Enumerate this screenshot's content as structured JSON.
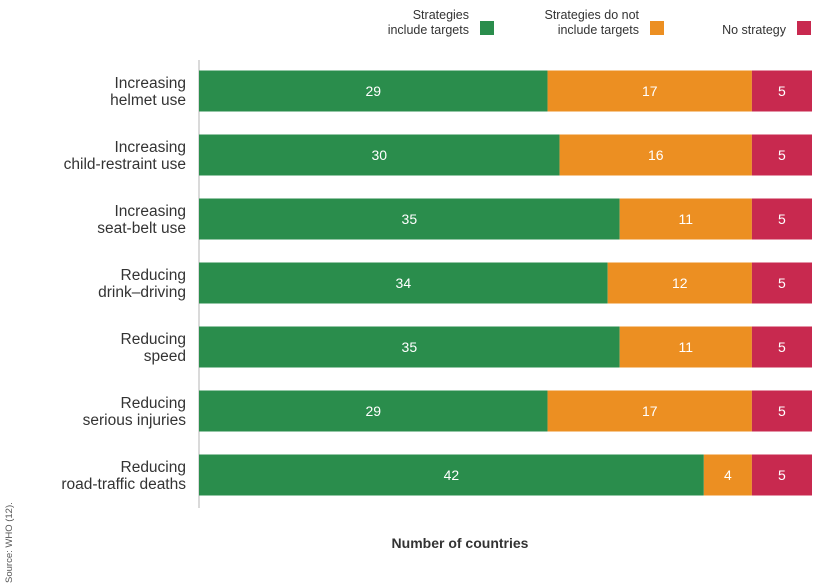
{
  "chart_data": {
    "type": "bar",
    "orientation": "horizontal",
    "stacked": true,
    "categories": [
      [
        "Increasing",
        "helmet use"
      ],
      [
        "Increasing",
        "child-restraint use"
      ],
      [
        "Increasing",
        "seat-belt use"
      ],
      [
        "Reducing",
        "drink–driving"
      ],
      [
        "Reducing",
        "speed"
      ],
      [
        "Reducing",
        "serious injuries"
      ],
      [
        "Reducing",
        "road-traffic deaths"
      ]
    ],
    "series": [
      {
        "name": [
          "Strategies",
          "include targets"
        ],
        "color": "#2a8d4c",
        "values": [
          29,
          30,
          35,
          34,
          35,
          29,
          42
        ]
      },
      {
        "name": [
          "Strategies do not",
          "include targets"
        ],
        "color": "#ec8f22",
        "values": [
          17,
          16,
          11,
          12,
          11,
          17,
          4
        ]
      },
      {
        "name": [
          "No strategy"
        ],
        "color": "#c8294f",
        "values": [
          5,
          5,
          5,
          5,
          5,
          5,
          5
        ]
      }
    ],
    "xlabel": "Number of countries",
    "xlim": [
      0,
      51
    ],
    "legend_position": "top-right",
    "grid": false
  },
  "source_note": "Source: WHO (12)."
}
